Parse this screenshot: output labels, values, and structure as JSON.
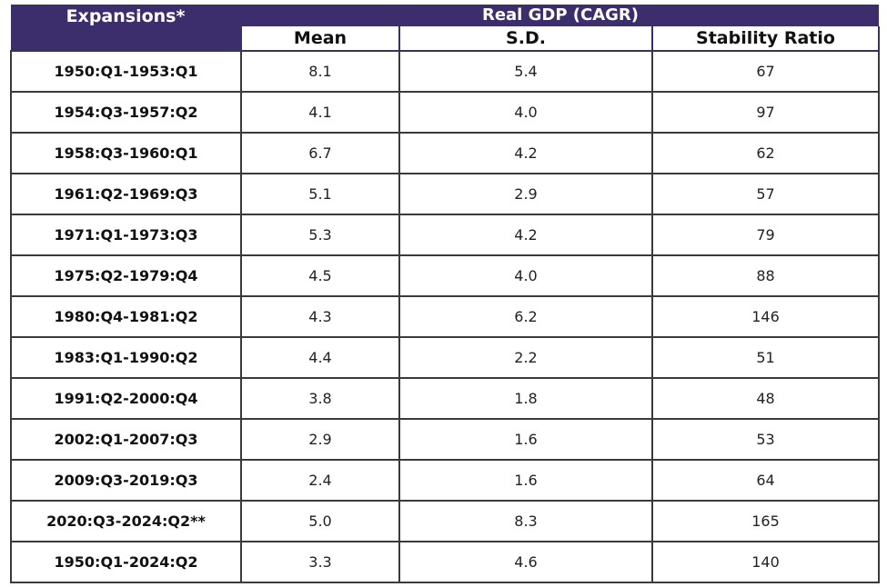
{
  "chart_data": {
    "type": "table",
    "header": {
      "row_label": "Expansions*",
      "group_label": "Real GDP (CAGR)",
      "columns": [
        "Mean",
        "S.D.",
        "Stability Ratio"
      ]
    },
    "rows": [
      {
        "period": "1950:Q1-1953:Q1",
        "mean": "8.1",
        "sd": "5.4",
        "ratio": "67"
      },
      {
        "period": "1954:Q3-1957:Q2",
        "mean": "4.1",
        "sd": "4.0",
        "ratio": "97"
      },
      {
        "period": "1958:Q3-1960:Q1",
        "mean": "6.7",
        "sd": "4.2",
        "ratio": "62"
      },
      {
        "period": "1961:Q2-1969:Q3",
        "mean": "5.1",
        "sd": "2.9",
        "ratio": "57"
      },
      {
        "period": "1971:Q1-1973:Q3",
        "mean": "5.3",
        "sd": "4.2",
        "ratio": "79"
      },
      {
        "period": "1975:Q2-1979:Q4",
        "mean": "4.5",
        "sd": "4.0",
        "ratio": "88"
      },
      {
        "period": "1980:Q4-1981:Q2",
        "mean": "4.3",
        "sd": "6.2",
        "ratio": "146"
      },
      {
        "period": "1983:Q1-1990:Q2",
        "mean": "4.4",
        "sd": "2.2",
        "ratio": "51"
      },
      {
        "period": "1991:Q2-2000:Q4",
        "mean": "3.8",
        "sd": "1.8",
        "ratio": "48"
      },
      {
        "period": "2002:Q1-2007:Q3",
        "mean": "2.9",
        "sd": "1.6",
        "ratio": "53"
      },
      {
        "period": "2009:Q3-2019:Q3",
        "mean": "2.4",
        "sd": "1.6",
        "ratio": "64"
      },
      {
        "period": "2020:Q3-2024:Q2**",
        "mean": "5.0",
        "sd": "8.3",
        "ratio": "165"
      },
      {
        "period": "1950:Q1-2024:Q2",
        "mean": "3.3",
        "sd": "4.6",
        "ratio": "140"
      }
    ]
  },
  "colors": {
    "header_bg": "#3c2e6c",
    "header_text": "#ffffff",
    "border": "#3a3a3a"
  }
}
